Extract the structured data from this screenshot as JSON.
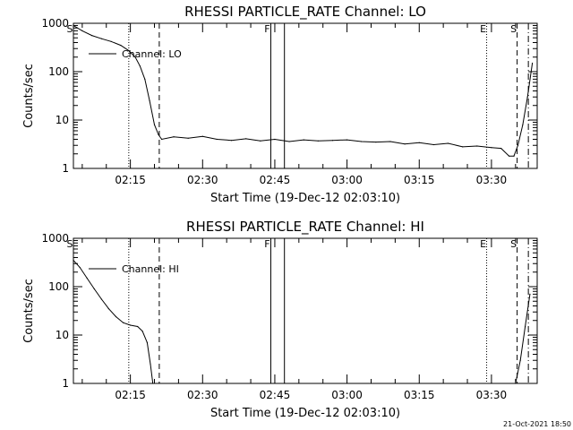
{
  "chart_data": [
    {
      "type": "line",
      "title": "RHESSI PARTICLE_RATE Channel: LO",
      "xlabel": "Start Time (19-Dec-12 02:03:10)",
      "ylabel": "Counts/sec",
      "yscale": "log",
      "ylim": [
        1,
        1000
      ],
      "xlim": [
        "02:03:10",
        "03:39:30"
      ],
      "xticks": [
        "02:15",
        "02:30",
        "02:45",
        "03:00",
        "03:15",
        "03:30"
      ],
      "yticks": [
        "1",
        "10",
        "100",
        "1000"
      ],
      "grid": false,
      "legend": {
        "placement": "top-left",
        "label": "Channel: LO"
      },
      "event_markers": [
        {
          "label": "S",
          "time": "02:03:10",
          "style": "solid"
        },
        {
          "label": "",
          "time": "02:14:40",
          "style": "dotted"
        },
        {
          "label": "",
          "time": "02:21:00",
          "style": "dashed"
        },
        {
          "label": "F",
          "time": "02:44:10",
          "style": "solid"
        },
        {
          "label": "",
          "time": "02:47:00",
          "style": "solid"
        },
        {
          "label": "E",
          "time": "03:29:00",
          "style": "dotted"
        },
        {
          "label": "S",
          "time": "03:35:20",
          "style": "dashed"
        },
        {
          "label": "",
          "time": "03:37:40",
          "style": "dashdot"
        }
      ],
      "series": [
        {
          "name": "Channel: LO",
          "x": [
            "02:03:10",
            "02:05:00",
            "02:07:00",
            "02:09:00",
            "02:11:00",
            "02:13:00",
            "02:14:30",
            "02:16:00",
            "02:17:00",
            "02:18:00",
            "02:19:00",
            "02:20:00",
            "02:20:50",
            "02:21:30",
            "02:24:00",
            "02:27:00",
            "02:30:00",
            "02:33:00",
            "02:36:00",
            "02:39:00",
            "02:42:00",
            "02:45:00",
            "02:48:00",
            "02:51:00",
            "02:54:00",
            "02:57:00",
            "03:00:00",
            "03:03:00",
            "03:06:00",
            "03:09:00",
            "03:12:00",
            "03:15:00",
            "03:18:00",
            "03:21:00",
            "03:24:00",
            "03:27:00",
            "03:30:00",
            "03:32:00",
            "03:33:40",
            "03:34:40",
            "03:35:30",
            "03:36:30",
            "03:37:30",
            "03:38:30"
          ],
          "y": [
            900,
            700,
            560,
            480,
            420,
            350,
            280,
            200,
            130,
            70,
            25,
            8,
            5,
            4,
            4.5,
            4.2,
            4.6,
            4.0,
            3.8,
            4.1,
            3.7,
            4.0,
            3.6,
            3.9,
            3.7,
            3.8,
            3.9,
            3.6,
            3.5,
            3.6,
            3.2,
            3.4,
            3.1,
            3.3,
            2.8,
            2.9,
            2.7,
            2.6,
            1.8,
            1.8,
            3.0,
            8,
            30,
            150
          ]
        }
      ]
    },
    {
      "type": "line",
      "title": "RHESSI PARTICLE_RATE Channel: HI",
      "xlabel": "Start Time (19-Dec-12 02:03:10)",
      "ylabel": "Counts/sec",
      "yscale": "log",
      "ylim": [
        1,
        1000
      ],
      "xlim": [
        "02:03:10",
        "03:39:30"
      ],
      "xticks": [
        "02:15",
        "02:30",
        "02:45",
        "03:00",
        "03:15",
        "03:30"
      ],
      "yticks": [
        "1",
        "10",
        "100",
        "1000"
      ],
      "grid": false,
      "legend": {
        "placement": "top-left",
        "label": "Channel: HI"
      },
      "event_markers": [
        {
          "label": "S",
          "time": "02:03:10",
          "style": "solid"
        },
        {
          "label": "",
          "time": "02:14:40",
          "style": "dotted"
        },
        {
          "label": "",
          "time": "02:21:00",
          "style": "dashed"
        },
        {
          "label": "F",
          "time": "02:44:10",
          "style": "solid"
        },
        {
          "label": "",
          "time": "02:47:00",
          "style": "solid"
        },
        {
          "label": "E",
          "time": "03:29:00",
          "style": "dotted"
        },
        {
          "label": "S",
          "time": "03:35:20",
          "style": "dashed"
        },
        {
          "label": "",
          "time": "03:37:40",
          "style": "dashdot"
        }
      ],
      "series": [
        {
          "name": "Channel: HI",
          "x": [
            "02:03:10",
            "02:04:30",
            "02:06:00",
            "02:07:30",
            "02:09:00",
            "02:10:30",
            "02:12:00",
            "02:13:30",
            "02:15:00",
            "02:16:30",
            "02:17:30",
            "02:18:30",
            "02:19:10",
            "02:19:40",
            "03:35:00",
            "03:36:00",
            "03:37:00",
            "03:38:00"
          ],
          "y": [
            350,
            250,
            150,
            90,
            55,
            35,
            24,
            18,
            16,
            15,
            12,
            7,
            2.5,
            1,
            1,
            3,
            15,
            70
          ]
        }
      ]
    }
  ],
  "timestamp": "21-Oct-2021 18:50"
}
